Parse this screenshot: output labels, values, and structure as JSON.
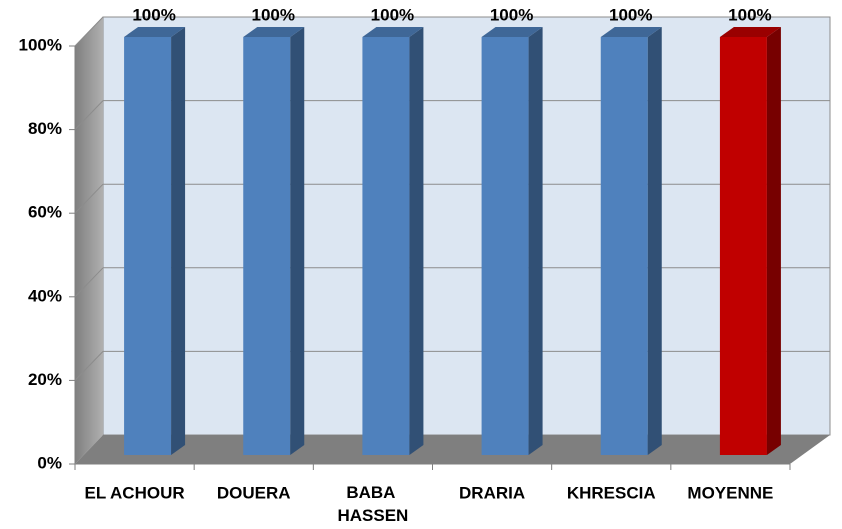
{
  "chart_data": {
    "type": "bar3d",
    "categories": [
      "EL ACHOUR",
      "DOUERA",
      "BABA HASSEN",
      "DRARIA",
      "KHRESCIA",
      "MOYENNE"
    ],
    "values": [
      100,
      100,
      100,
      100,
      100,
      100
    ],
    "value_labels": [
      "100%",
      "100%",
      "100%",
      "100%",
      "100%",
      "100%"
    ],
    "colors": [
      "#4f81bd",
      "#4f81bd",
      "#4f81bd",
      "#4f81bd",
      "#4f81bd",
      "#c00000"
    ],
    "ylim": [
      0,
      100
    ],
    "yticks": [
      {
        "value": 0,
        "label": "0%"
      },
      {
        "value": 20,
        "label": "20%"
      },
      {
        "value": 40,
        "label": "40%"
      },
      {
        "value": 60,
        "label": "60%"
      },
      {
        "value": 80,
        "label": "80%"
      },
      {
        "value": 100,
        "label": "100%"
      }
    ],
    "grid": true
  }
}
